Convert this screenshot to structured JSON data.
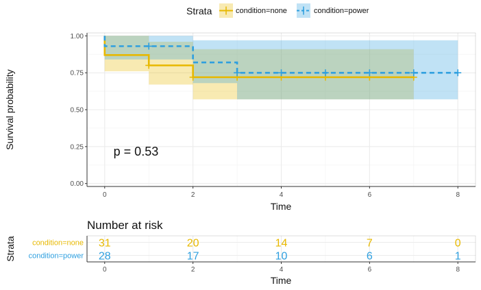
{
  "chart_data": {
    "type": "line",
    "kind": "kaplan-meier",
    "legend": {
      "title": "Strata",
      "placement": "top-center"
    },
    "xlabel": "Time",
    "ylabel": "Survival probability",
    "xlim": [
      -0.4,
      8.4
    ],
    "ylim": [
      -0.02,
      1.02
    ],
    "x_ticks": [
      0,
      2,
      4,
      6,
      8
    ],
    "y_ticks": [
      0,
      0.25,
      0.5,
      0.75,
      1
    ],
    "y_tick_labels": [
      "0.00",
      "0.25",
      "0.50",
      "0.75",
      "1.00"
    ],
    "grid": true,
    "annotation": "p = 0.53",
    "annotation_at": {
      "x": 0.2,
      "y": 0.19
    },
    "series": [
      {
        "name": "condition=none",
        "color": "#E7B800",
        "line_style": "solid",
        "steps": [
          {
            "x": 0,
            "y": 1.0
          },
          {
            "x": 0,
            "y": 0.87
          },
          {
            "x": 1,
            "y": 0.8
          },
          {
            "x": 2,
            "y": 0.72
          },
          {
            "x": 7,
            "y": 0.72
          }
        ],
        "ci": [
          {
            "x": 0,
            "lo": 0.76,
            "hi": 1.0
          },
          {
            "x": 1,
            "lo": 0.67,
            "hi": 0.96
          },
          {
            "x": 2,
            "lo": 0.57,
            "hi": 0.91
          },
          {
            "x": 3,
            "lo": 0.57,
            "hi": 0.91
          },
          {
            "x": 7,
            "lo": 0.57,
            "hi": 0.91
          }
        ],
        "censor_times": [
          1,
          2,
          3,
          4,
          5,
          6,
          7
        ]
      },
      {
        "name": "condition=power",
        "color": "#2E9FDF",
        "line_style": "dashed",
        "steps": [
          {
            "x": 0,
            "y": 1.0
          },
          {
            "x": 0,
            "y": 0.93
          },
          {
            "x": 2,
            "y": 0.82
          },
          {
            "x": 3,
            "y": 0.75
          },
          {
            "x": 8,
            "y": 0.75
          }
        ],
        "ci": [
          {
            "x": 0,
            "lo": 0.84,
            "hi": 1.0
          },
          {
            "x": 2,
            "lo": 0.68,
            "hi": 0.97
          },
          {
            "x": 3,
            "lo": 0.57,
            "hi": 0.97
          },
          {
            "x": 8,
            "lo": 0.57,
            "hi": 0.97
          }
        ],
        "censor_times": [
          1,
          3,
          4,
          5,
          6,
          7,
          8
        ]
      }
    ]
  },
  "risk_table": {
    "title": "Number at risk",
    "ylabel": "Strata",
    "xlabel": "Time",
    "times": [
      0,
      2,
      4,
      6,
      8
    ],
    "rows": [
      {
        "label": "condition=none",
        "color": "#E7B800",
        "values": [
          "31",
          "20",
          "14",
          "7",
          "0"
        ]
      },
      {
        "label": "condition=power",
        "color": "#2E9FDF",
        "values": [
          "28",
          "17",
          "10",
          "6",
          "1"
        ]
      }
    ]
  }
}
